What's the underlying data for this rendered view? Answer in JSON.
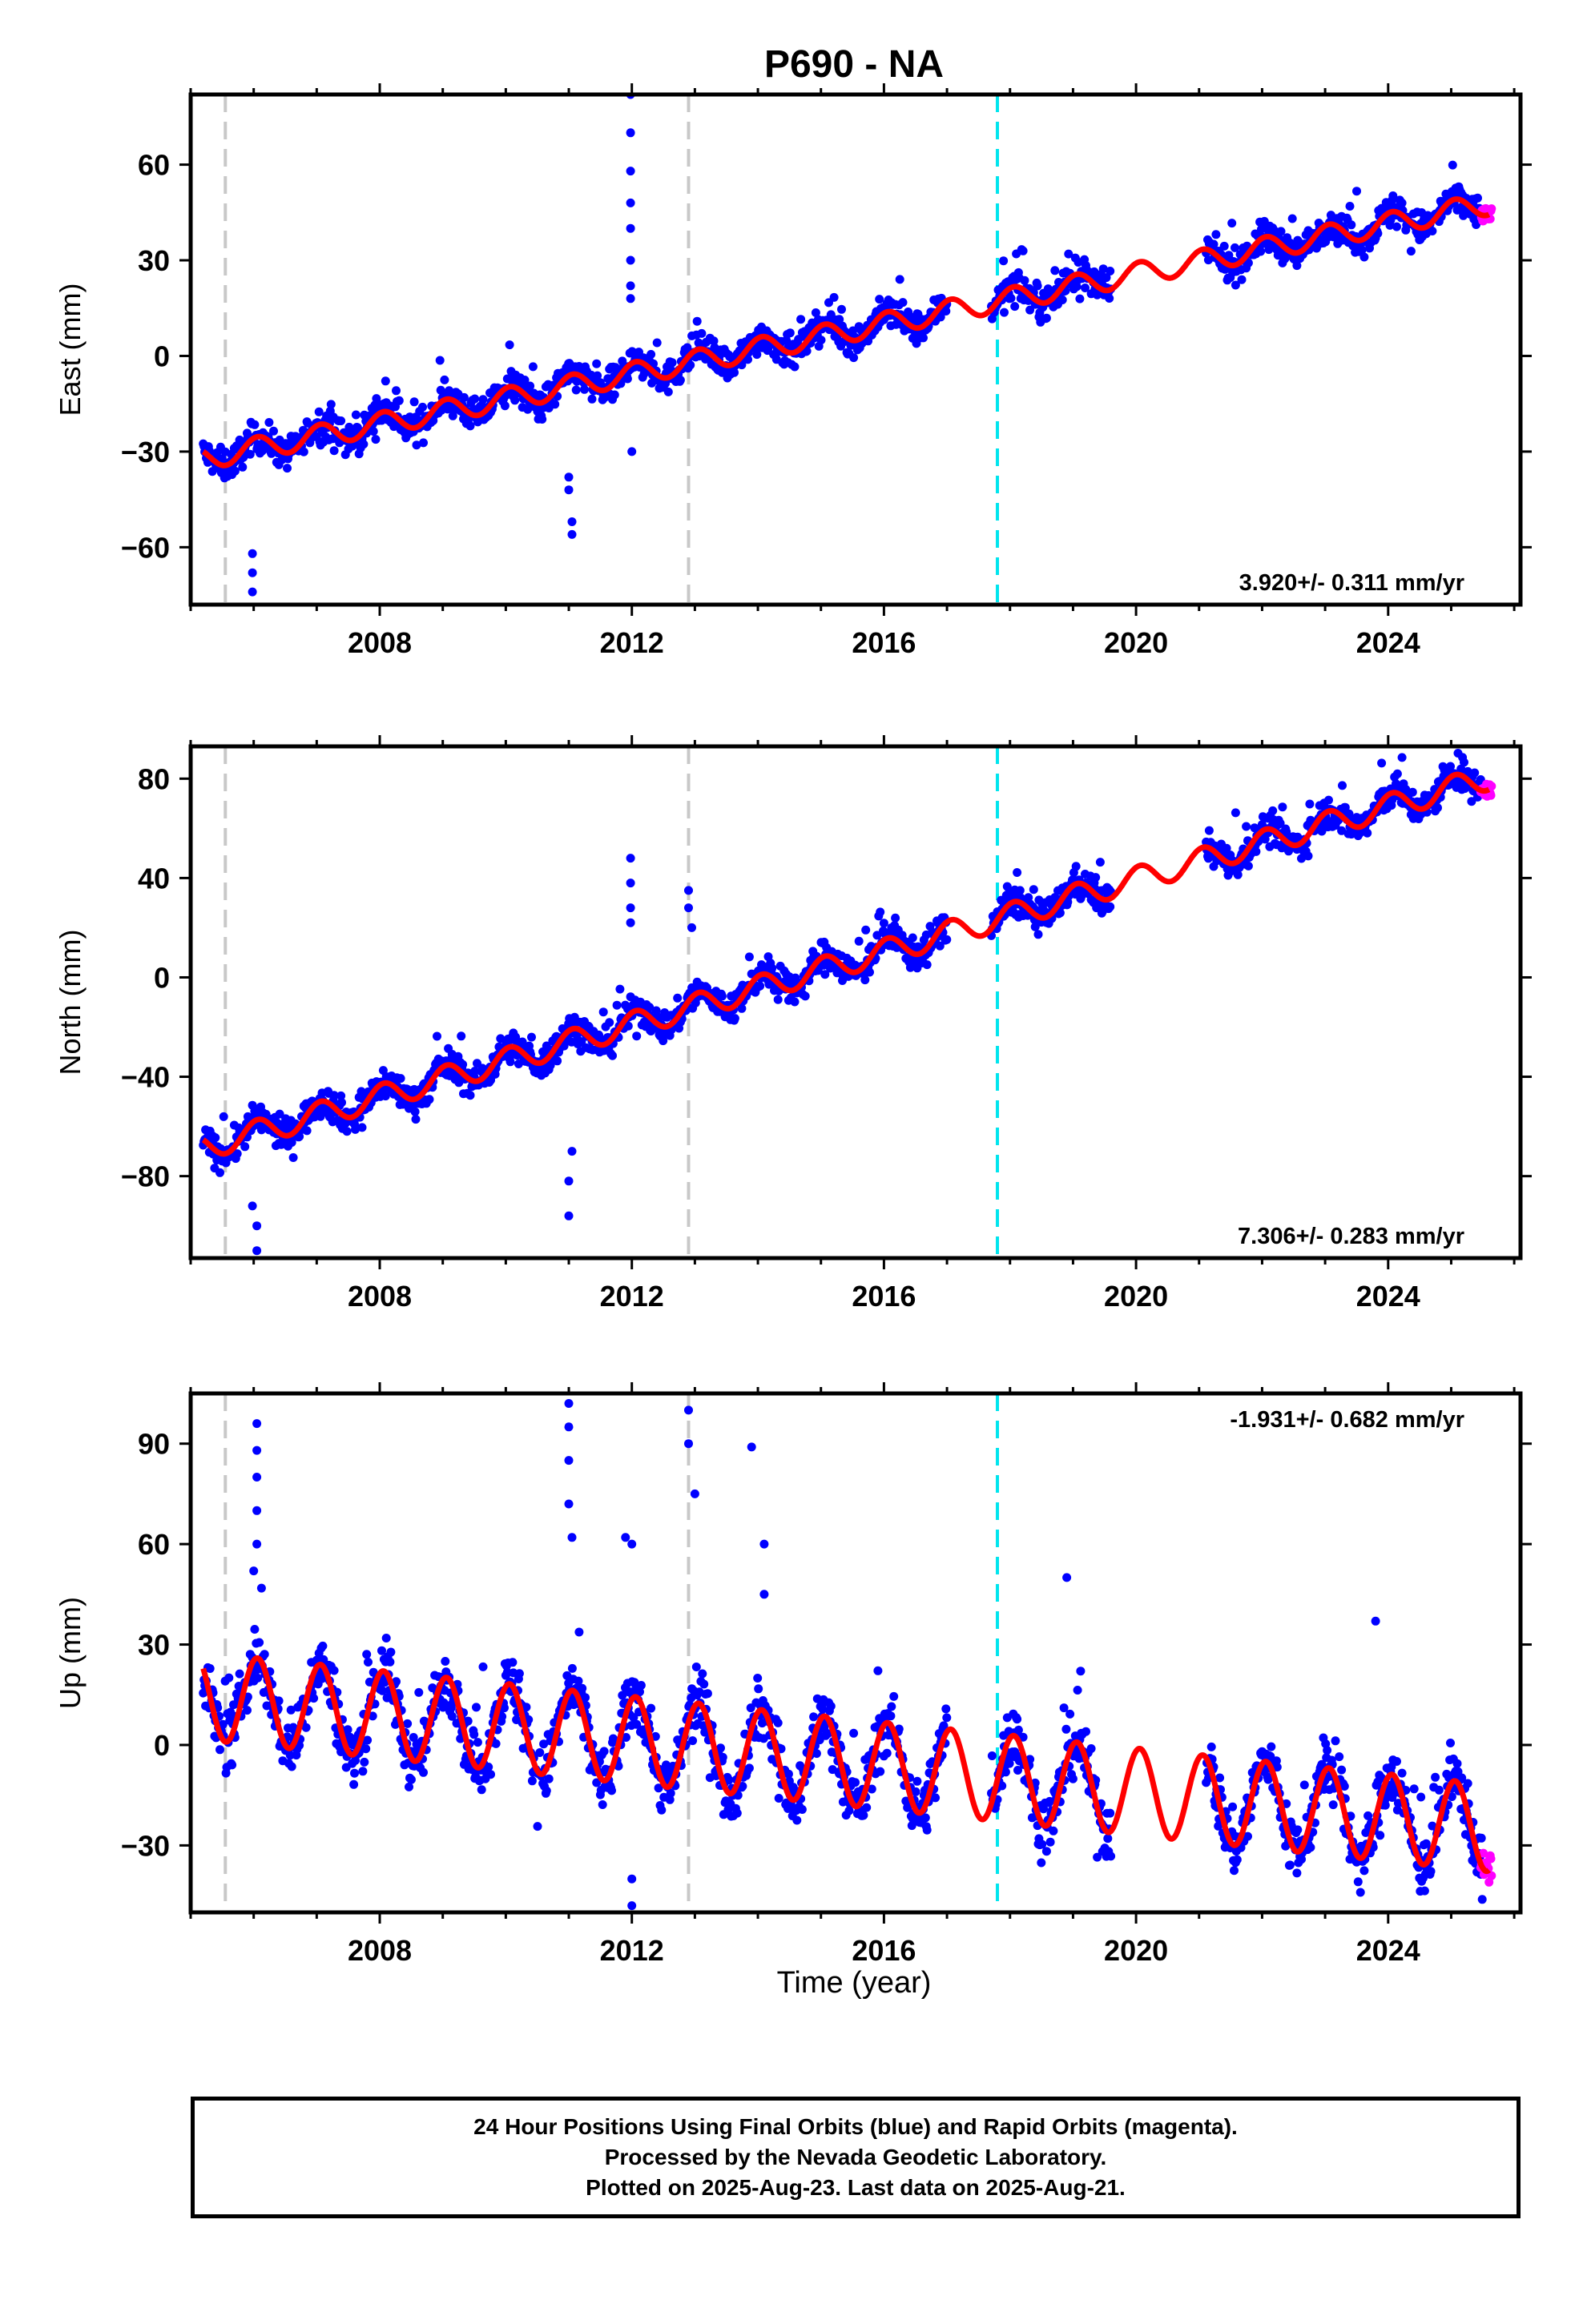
{
  "chart_data": {
    "title": "P690 - NA",
    "type": "scatter",
    "xlabel": "Time (year)",
    "x_range": [
      2005.0,
      2026.1
    ],
    "x_ticks": [
      2008,
      2012,
      2016,
      2020,
      2024
    ],
    "x_minor_step": 1,
    "breaks": [
      {
        "date": 2005.55,
        "color": "#c8c8c8"
      },
      {
        "date": 2012.9,
        "color": "#c8c8c8"
      },
      {
        "date": 2017.8,
        "color": "#00e5ee"
      }
    ],
    "colors": {
      "final_orbit": "#0000ff",
      "rapid_orbit": "#ff00ff",
      "model": "#ff0000"
    },
    "panels": [
      {
        "name": "East",
        "ylabel": "East (mm)",
        "ylim": [
          -78,
          82
        ],
        "yticks": [
          -60,
          -30,
          0,
          30,
          60
        ],
        "rate": "3.920+/- 0.311 mm/yr",
        "rate_position": "bottom-right",
        "model": {
          "intercept_at_2005": -33,
          "slope_mm_per_yr": 3.92,
          "annual_amplitude": 3.5,
          "noise": 3.5,
          "gaps": [
            [
              2017.0,
              2017.7
            ],
            [
              2019.6,
              2021.1
            ]
          ],
          "outliers": [
            [
              2005.98,
              -62
            ],
            [
              2005.98,
              -68
            ],
            [
              2005.98,
              -74
            ],
            [
              2011.0,
              -38
            ],
            [
              2011.0,
              -42
            ],
            [
              2011.05,
              -52
            ],
            [
              2011.05,
              -56
            ],
            [
              2011.98,
              82
            ],
            [
              2011.98,
              70
            ],
            [
              2011.98,
              58
            ],
            [
              2011.98,
              48
            ],
            [
              2011.98,
              40
            ],
            [
              2011.98,
              30
            ],
            [
              2011.98,
              22
            ],
            [
              2011.98,
              18
            ],
            [
              2012.0,
              -30
            ]
          ],
          "end_anchor": 47
        }
      },
      {
        "name": "North",
        "ylabel": "North (mm)",
        "ylim": [
          -113,
          93
        ],
        "yticks": [
          -80,
          -40,
          0,
          40,
          80
        ],
        "rate": "7.306+/- 0.283 mm/yr",
        "rate_position": "bottom-right",
        "model": {
          "intercept_at_2005": -70,
          "slope_mm_per_yr": 7.306,
          "annual_amplitude": 5.0,
          "noise": 4.5,
          "gaps": [
            [
              2017.0,
              2017.7
            ],
            [
              2019.6,
              2021.1
            ]
          ],
          "outliers": [
            [
              2006.05,
              -100
            ],
            [
              2006.05,
              -110
            ],
            [
              2005.98,
              -92
            ],
            [
              2011.0,
              -82
            ],
            [
              2011.0,
              -96
            ],
            [
              2011.05,
              -70
            ],
            [
              2011.98,
              48
            ],
            [
              2011.98,
              38
            ],
            [
              2011.98,
              28
            ],
            [
              2011.98,
              22
            ],
            [
              2012.9,
              35
            ],
            [
              2012.9,
              28
            ],
            [
              2012.95,
              20
            ]
          ],
          "end_anchor": 80
        }
      },
      {
        "name": "Up",
        "ylabel": "Up (mm)",
        "ylim": [
          -50,
          105
        ],
        "yticks": [
          -30,
          0,
          30,
          60,
          90
        ],
        "rate": "-1.931+/- 0.682 mm/yr",
        "rate_position": "top-right",
        "model": {
          "intercept_at_2005": 15,
          "slope_mm_per_yr": -1.931,
          "annual_amplitude": 13.0,
          "noise": 6.5,
          "gaps": [
            [
              2017.0,
              2017.7
            ],
            [
              2019.6,
              2021.1
            ]
          ],
          "outliers": [
            [
              2006.05,
              96
            ],
            [
              2006.05,
              88
            ],
            [
              2006.05,
              80
            ],
            [
              2006.05,
              70
            ],
            [
              2006.05,
              60
            ],
            [
              2006.0,
              52
            ],
            [
              2011.0,
              102
            ],
            [
              2011.0,
              95
            ],
            [
              2011.0,
              85
            ],
            [
              2011.0,
              72
            ],
            [
              2011.05,
              62
            ],
            [
              2011.9,
              62
            ],
            [
              2012.0,
              60
            ],
            [
              2012.0,
              -48
            ],
            [
              2012.0,
              -40
            ],
            [
              2012.9,
              100
            ],
            [
              2012.9,
              90
            ],
            [
              2013.0,
              75
            ],
            [
              2013.9,
              89
            ],
            [
              2014.1,
              60
            ],
            [
              2014.1,
              45
            ],
            [
              2018.9,
              50
            ],
            [
              2023.8,
              37
            ]
          ],
          "end_anchor": -12
        }
      }
    ]
  },
  "footer": {
    "line1": "24 Hour Positions Using Final Orbits (blue) and Rapid Orbits (magenta).",
    "line2": "Processed by the Nevada Geodetic Laboratory.",
    "line3": "Plotted on 2025-Aug-23. Last data on 2025-Aug-21."
  }
}
